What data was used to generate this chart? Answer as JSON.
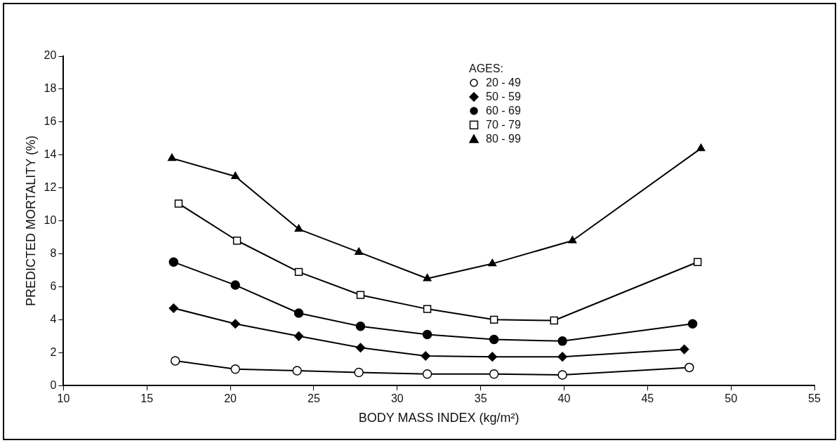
{
  "chart_data": {
    "type": "line",
    "xlabel": "BODY MASS INDEX (kg/m²)",
    "ylabel": "PREDICTED MORTALITY (%)",
    "legend_title": "AGES:",
    "legend": "top",
    "grid": false,
    "line_style": "solid",
    "xlim": [
      10,
      55
    ],
    "xticks": [
      10,
      15,
      20,
      25,
      30,
      35,
      40,
      45,
      50,
      55
    ],
    "ylim": [
      0,
      20
    ],
    "yticks": [
      0,
      2,
      4,
      6,
      8,
      10,
      12,
      14,
      16,
      18,
      20
    ],
    "series": [
      {
        "name": "20 - 49",
        "color": "#ffffff",
        "marker": "circle",
        "x": [
          16.7,
          20.3,
          24.0,
          27.7,
          31.8,
          35.8,
          39.9,
          47.5
        ],
        "values": [
          1.5,
          1.0,
          0.9,
          0.8,
          0.7,
          0.7,
          0.65,
          1.1
        ]
      },
      {
        "name": "50 - 59",
        "color": "#000000",
        "marker": "diamond",
        "x": [
          16.6,
          20.3,
          24.1,
          27.8,
          31.7,
          35.7,
          39.9,
          47.2
        ],
        "values": [
          4.7,
          3.75,
          3.0,
          2.3,
          1.8,
          1.75,
          1.75,
          2.2
        ]
      },
      {
        "name": "60 - 69",
        "color": "#000000",
        "marker": "circle",
        "x": [
          16.6,
          20.3,
          24.1,
          27.8,
          31.8,
          35.8,
          39.9,
          47.7
        ],
        "values": [
          7.5,
          6.1,
          4.4,
          3.6,
          3.1,
          2.8,
          2.7,
          3.75
        ]
      },
      {
        "name": "70 - 79",
        "color": "#ffffff",
        "marker": "square",
        "x": [
          16.9,
          20.4,
          24.1,
          27.8,
          31.8,
          35.8,
          39.4,
          48.0
        ],
        "values": [
          11.05,
          8.8,
          6.9,
          5.5,
          4.65,
          4.0,
          3.95,
          7.5
        ]
      },
      {
        "name": "80 - 99",
        "color": "#000000",
        "marker": "triangle",
        "x": [
          16.5,
          20.3,
          24.1,
          27.7,
          31.8,
          35.7,
          40.5,
          48.2
        ],
        "values": [
          13.8,
          12.7,
          9.5,
          8.1,
          6.5,
          7.4,
          8.8,
          14.4
        ]
      }
    ]
  }
}
